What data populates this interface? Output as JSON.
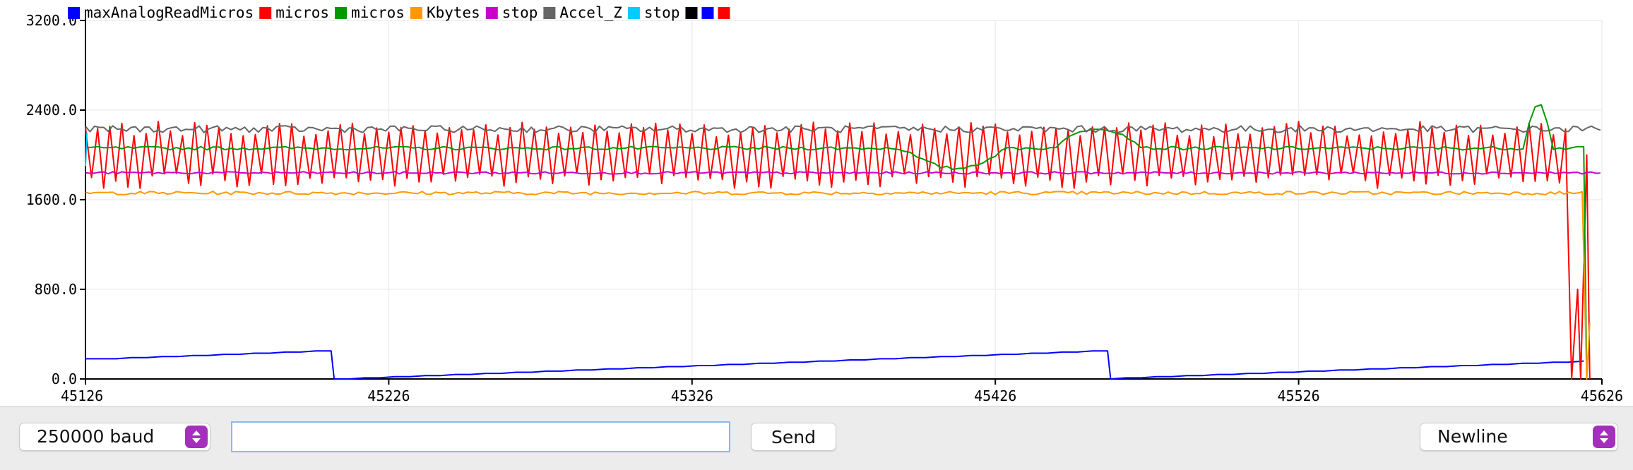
{
  "legend": [
    {
      "label": "maxAnalogReadMicros",
      "color": "#0000ff"
    },
    {
      "label": "micros",
      "color": "#ff0000"
    },
    {
      "label": "micros",
      "color": "#009900"
    },
    {
      "label": "Kbytes",
      "color": "#ff9900"
    },
    {
      "label": "stop",
      "color": "#cc00cc"
    },
    {
      "label": "Accel_Z",
      "color": "#666666"
    },
    {
      "label": "stop",
      "color": "#00ccff"
    },
    {
      "label": "",
      "color": "#000000"
    },
    {
      "label": "",
      "color": "#0000ff"
    },
    {
      "label": "",
      "color": "#ff0000"
    }
  ],
  "chart_data": {
    "type": "line",
    "title": "",
    "xlabel": "",
    "ylabel": "",
    "xlim": [
      45126,
      45626
    ],
    "ylim": [
      0,
      3200
    ],
    "grid": true,
    "legend_position": "top-left",
    "y_ticks": [
      "0.0",
      "800.0",
      "1600.0",
      "2400.0",
      "3200.0"
    ],
    "x_ticks": [
      "45126",
      "45226",
      "45326",
      "45426",
      "45526",
      "45626"
    ],
    "series": [
      {
        "name": "maxAnalogReadMicros",
        "color": "#0000ff",
        "kind": "sawtooth",
        "points": [
          [
            45126,
            175
          ],
          [
            45207,
            250
          ],
          [
            45208,
            0
          ],
          [
            45463,
            250
          ],
          [
            45464,
            0
          ],
          [
            45620,
            160
          ]
        ]
      },
      {
        "name": "micros",
        "color": "#ff0000",
        "kind": "oscillating",
        "mid": 2000,
        "amplitude": 230,
        "period": 4,
        "end_drop": 45615
      },
      {
        "name": "micros",
        "color": "#009900",
        "kind": "band",
        "level": 2060,
        "bumps": [
          [
            45395,
            45430,
            -180
          ],
          [
            45445,
            45475,
            180
          ],
          [
            45600,
            45610,
            400
          ]
        ],
        "end_drop": 45620
      },
      {
        "name": "Kbytes",
        "color": "#ff9900",
        "kind": "noisy",
        "level": 1660,
        "noise": 15,
        "end_drop": 45620
      },
      {
        "name": "stop",
        "color": "#cc00cc",
        "kind": "noisy",
        "level": 1840,
        "noise": 10
      },
      {
        "name": "Accel_Z",
        "color": "#666666",
        "kind": "noisy",
        "level": 2230,
        "noise": 30
      },
      {
        "name": "stop",
        "color": "#00ccff",
        "kind": "spike",
        "x": 45126,
        "values": [
          1900,
          2200
        ]
      }
    ]
  },
  "controls": {
    "baud_label": "250000 baud",
    "input_value": "",
    "send_label": "Send",
    "line_ending_label": "Newline"
  }
}
